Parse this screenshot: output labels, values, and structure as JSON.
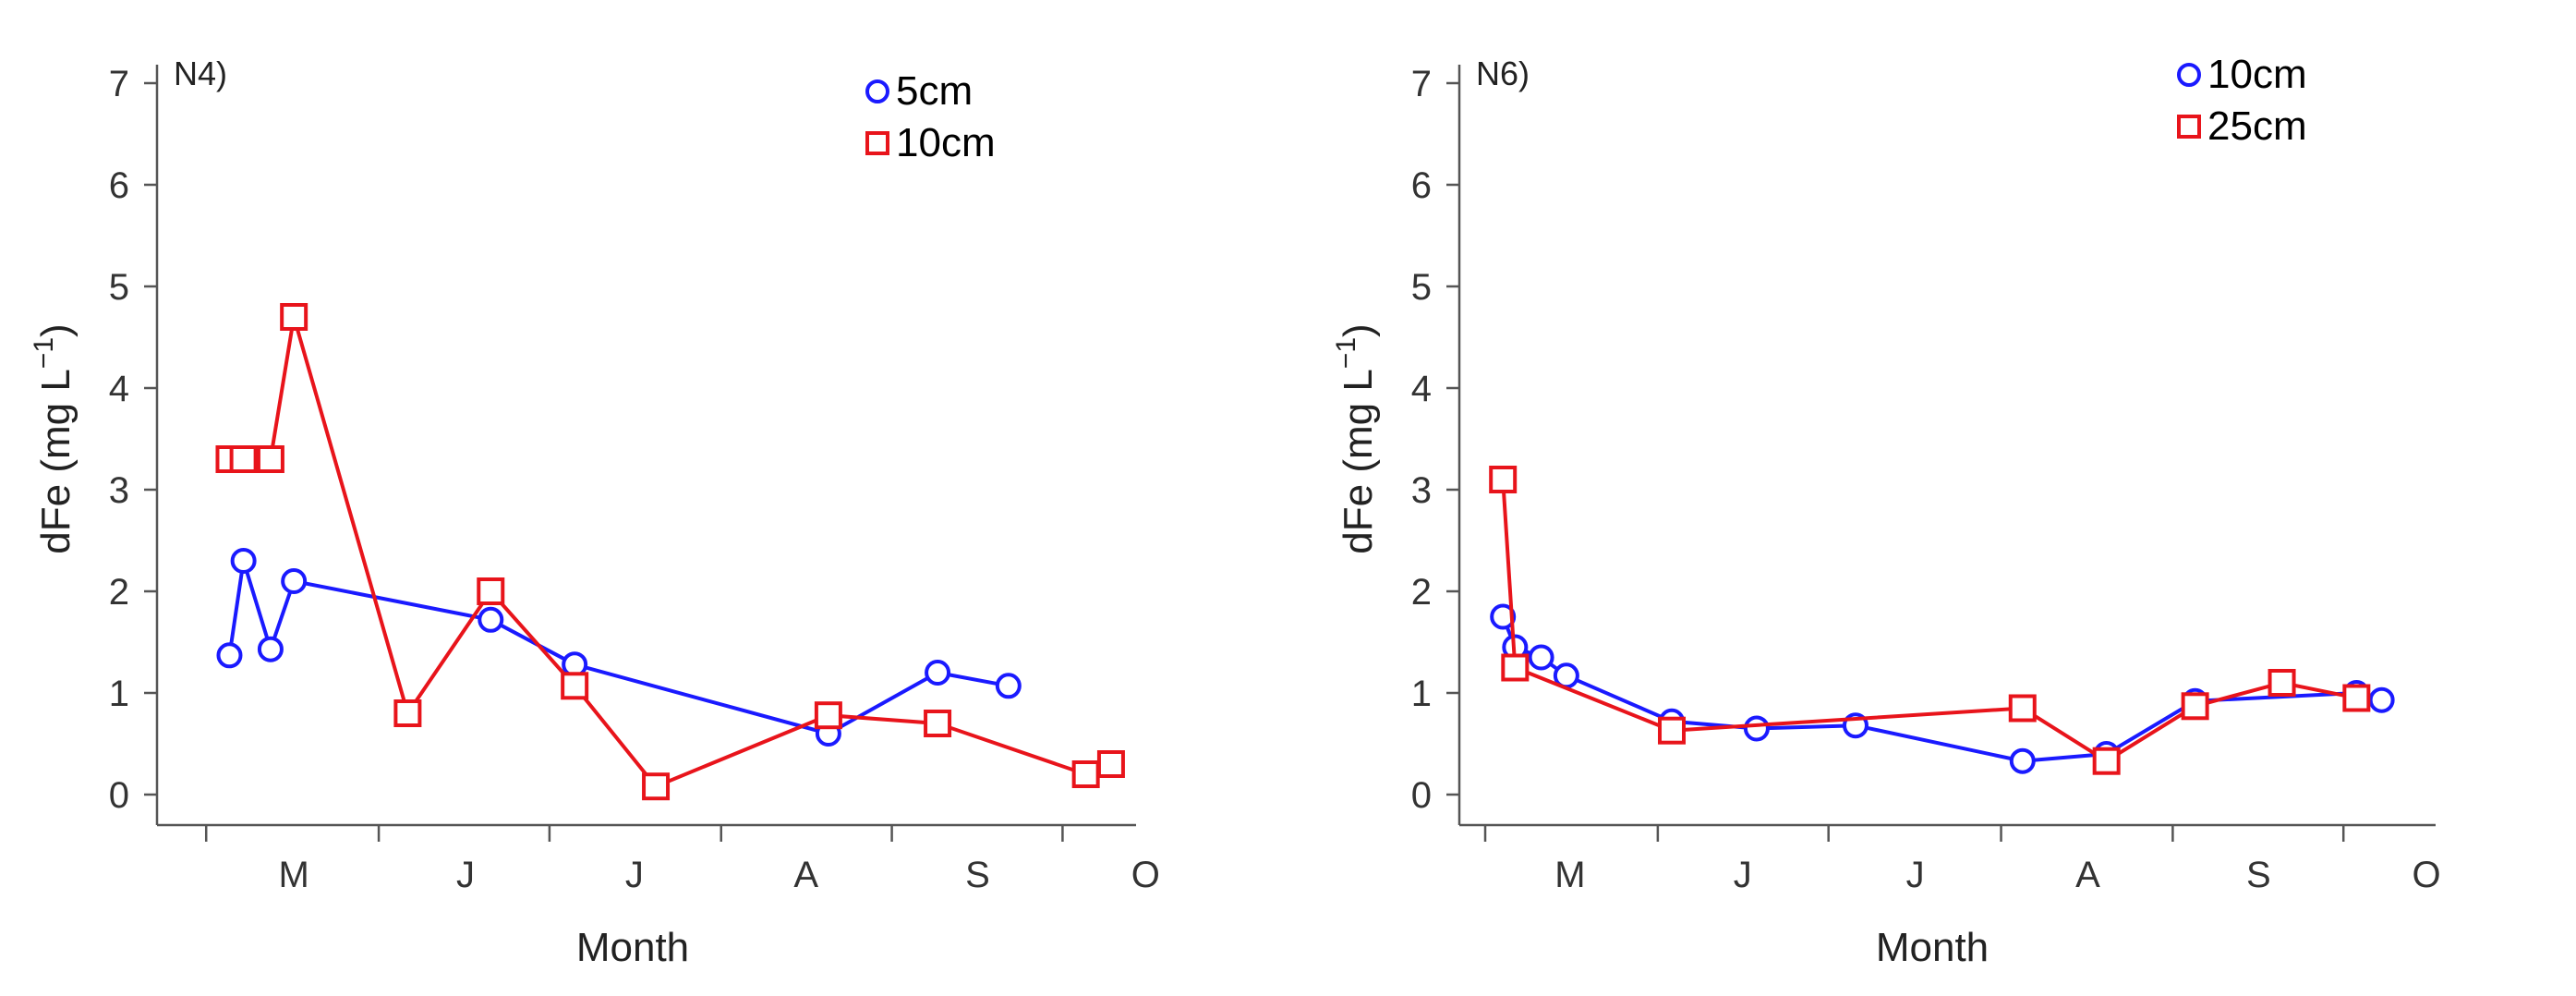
{
  "chart_data": [
    {
      "type": "line",
      "panel_label": "N4)",
      "xlabel": "Month",
      "ylabel": "dFe (mg L",
      "ylabel_superscript": "−1",
      "ylabel_close": ")",
      "ylim": [
        0,
        7
      ],
      "yticks": [
        0,
        1,
        2,
        3,
        4,
        5,
        6,
        7
      ],
      "xlim": [
        0,
        1
      ],
      "month_labels": [
        "M",
        "J",
        "J",
        "A",
        "S",
        "O"
      ],
      "month_label_positions": [
        0.117,
        0.301,
        0.482,
        0.666,
        0.85,
        1.03
      ],
      "month_ticks": [
        0.023,
        0.208,
        0.391,
        0.575,
        0.758,
        0.941
      ],
      "legend_position": "top-right",
      "series": [
        {
          "name": "5cm",
          "color": "#1a1aff",
          "marker": "circle",
          "x": [
            0.048,
            0.063,
            0.092,
            0.117,
            0.328,
            0.418,
            0.69,
            0.807,
            0.883
          ],
          "y": [
            1.37,
            2.3,
            1.43,
            2.1,
            1.72,
            1.28,
            0.6,
            1.2,
            1.07
          ]
        },
        {
          "name": "10cm",
          "color": "#e8141b",
          "marker": "square",
          "x": [
            0.048,
            0.063,
            0.092,
            0.117,
            0.239,
            0.328,
            0.418,
            0.505,
            0.69,
            0.807,
            0.966,
            0.993
          ],
          "y": [
            3.3,
            3.3,
            3.3,
            4.7,
            0.8,
            2.0,
            1.07,
            0.08,
            0.78,
            0.7,
            0.2,
            0.3
          ]
        }
      ]
    },
    {
      "type": "line",
      "panel_label": "N6)",
      "xlabel": "Month",
      "ylabel": "dFe (mg L",
      "ylabel_superscript": "−1",
      "ylabel_close": ")",
      "ylim": [
        0,
        7
      ],
      "yticks": [
        0,
        1,
        2,
        3,
        4,
        5,
        6,
        7
      ],
      "xlim": [
        0,
        1
      ],
      "month_labels": [
        "M",
        "J",
        "J",
        "A",
        "S",
        "O"
      ],
      "month_label_positions": [
        0.092,
        0.277,
        0.462,
        0.647,
        0.83,
        1.01
      ],
      "month_ticks": [
        0.001,
        0.186,
        0.369,
        0.554,
        0.738,
        0.921
      ],
      "legend_position": "top-right",
      "series": [
        {
          "name": "10cm",
          "color": "#1a1aff",
          "marker": "circle",
          "x": [
            0.02,
            0.033,
            0.061,
            0.088,
            0.201,
            0.292,
            0.398,
            0.577,
            0.667,
            0.762,
            0.935,
            0.962
          ],
          "y": [
            1.75,
            1.45,
            1.35,
            1.17,
            0.72,
            0.65,
            0.68,
            0.33,
            0.4,
            0.92,
            1.0,
            0.93
          ]
        },
        {
          "name": "25cm",
          "color": "#e8141b",
          "marker": "square",
          "x": [
            0.02,
            0.033,
            0.201,
            0.577,
            0.667,
            0.762,
            0.855,
            0.935
          ],
          "y": [
            3.1,
            1.25,
            0.63,
            0.85,
            0.33,
            0.87,
            1.1,
            0.95
          ]
        }
      ]
    }
  ]
}
